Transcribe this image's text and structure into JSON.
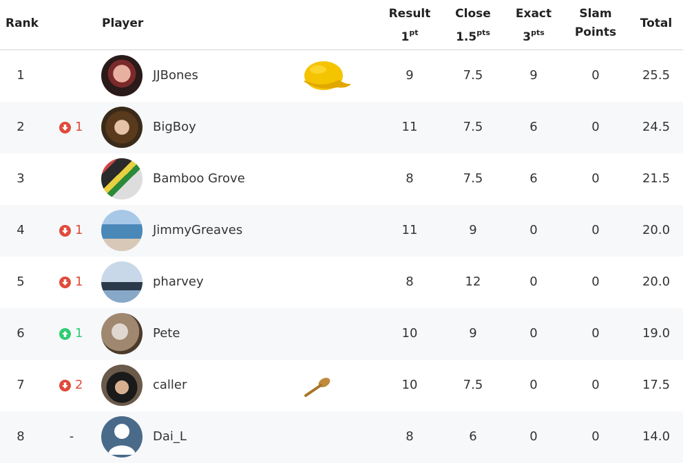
{
  "header": {
    "rank": "Rank",
    "player": "Player",
    "result_line1": "Result",
    "result_line2": "1",
    "result_sup": "pt",
    "close_line1": "Close",
    "close_line2": "1.5",
    "close_sup": "pts",
    "exact_line1": "Exact",
    "exact_line2": "3",
    "exact_sup": "pts",
    "slam_line1": "Slam",
    "slam_line2": "Points",
    "total": "Total"
  },
  "rows": [
    {
      "rank": "1",
      "move_dir": "none",
      "move": "",
      "name": "JJBones",
      "badge": "yellow-cap-icon",
      "result": "9",
      "close": "7.5",
      "exact": "9",
      "slam": "0",
      "total": "25.5"
    },
    {
      "rank": "2",
      "move_dir": "down",
      "move": "1",
      "name": "BigBoy",
      "badge": "",
      "result": "11",
      "close": "7.5",
      "exact": "6",
      "slam": "0",
      "total": "24.5"
    },
    {
      "rank": "3",
      "move_dir": "none",
      "move": "",
      "name": "Bamboo Grove",
      "badge": "",
      "result": "8",
      "close": "7.5",
      "exact": "6",
      "slam": "0",
      "total": "21.5"
    },
    {
      "rank": "4",
      "move_dir": "down",
      "move": "1",
      "name": "JimmyGreaves",
      "badge": "",
      "result": "11",
      "close": "9",
      "exact": "0",
      "slam": "0",
      "total": "20.0"
    },
    {
      "rank": "5",
      "move_dir": "down",
      "move": "1",
      "name": "pharvey",
      "badge": "",
      "result": "8",
      "close": "12",
      "exact": "0",
      "slam": "0",
      "total": "20.0"
    },
    {
      "rank": "6",
      "move_dir": "up",
      "move": "1",
      "name": "Pete",
      "badge": "",
      "result": "10",
      "close": "9",
      "exact": "0",
      "slam": "0",
      "total": "19.0"
    },
    {
      "rank": "7",
      "move_dir": "down",
      "move": "2",
      "name": "caller",
      "badge": "wooden-spoon-icon",
      "result": "10",
      "close": "7.5",
      "exact": "0",
      "slam": "0",
      "total": "17.5"
    },
    {
      "rank": "8",
      "move_dir": "same",
      "move": "-",
      "name": "Dai_L",
      "badge": "",
      "result": "8",
      "close": "6",
      "exact": "0",
      "slam": "0",
      "total": "14.0"
    }
  ],
  "colors": {
    "down": "#e04a3a",
    "up": "#2ecc71",
    "row_alt": "#f6f8fa"
  }
}
